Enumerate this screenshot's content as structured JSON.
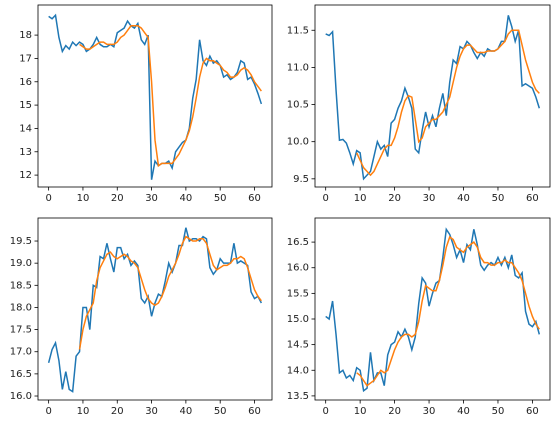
{
  "chart_data": [
    {
      "type": "line",
      "x": [
        0,
        1,
        2,
        3,
        4,
        5,
        6,
        7,
        8,
        9,
        10,
        11,
        12,
        13,
        14,
        15,
        16,
        17,
        18,
        19,
        20,
        21,
        22,
        23,
        24,
        25,
        26,
        27,
        28,
        29,
        30,
        31,
        32,
        33,
        34,
        35,
        36,
        37,
        38,
        39,
        40,
        41,
        42,
        43,
        44,
        45,
        46,
        47,
        48,
        49,
        50,
        51,
        52,
        53,
        54,
        55,
        56,
        57,
        58,
        59,
        60,
        61,
        62
      ],
      "series": [
        {
          "color": "#1f77b4",
          "values": [
            18.8,
            18.7,
            18.85,
            17.9,
            17.3,
            17.55,
            17.4,
            17.7,
            17.55,
            17.7,
            17.6,
            17.3,
            17.4,
            17.6,
            17.9,
            17.6,
            17.5,
            17.5,
            17.6,
            17.5,
            18.1,
            18.2,
            18.3,
            18.6,
            18.4,
            18.3,
            18.5,
            17.8,
            17.6,
            18.0,
            11.8,
            12.6,
            12.4,
            12.5,
            12.5,
            12.6,
            12.3,
            13.0,
            13.2,
            13.4,
            13.5,
            14.0,
            15.3,
            16.1,
            17.8,
            16.9,
            16.7,
            17.1,
            16.8,
            16.9,
            16.7,
            16.2,
            16.3,
            16.1,
            16.2,
            16.4,
            16.9,
            16.8,
            16.1,
            16.2,
            15.9,
            15.5,
            15.05
          ]
        },
        {
          "color": "#ff7f0e",
          "values": [
            null,
            null,
            null,
            null,
            null,
            null,
            null,
            null,
            null,
            17.6,
            17.5,
            17.4,
            17.4,
            17.5,
            17.6,
            17.7,
            17.7,
            17.6,
            17.6,
            17.6,
            17.7,
            17.9,
            18.0,
            18.2,
            18.4,
            18.4,
            18.4,
            18.3,
            18.1,
            17.9,
            16.0,
            13.5,
            12.4,
            12.5,
            12.5,
            12.5,
            12.5,
            12.7,
            12.9,
            13.2,
            13.5,
            13.9,
            14.5,
            15.3,
            16.2,
            16.8,
            17.0,
            16.9,
            16.9,
            16.8,
            16.7,
            16.5,
            16.4,
            16.2,
            16.2,
            16.3,
            16.5,
            16.6,
            16.5,
            16.3,
            16.0,
            15.8,
            15.6
          ]
        }
      ],
      "xlim": [
        -3.1,
        65.1
      ],
      "xticks": [
        0,
        10,
        20,
        30,
        40,
        50,
        60
      ],
      "ylim": [
        11.49,
        19.29
      ],
      "yticks": [
        12,
        13,
        14,
        15,
        16,
        17,
        18
      ]
    },
    {
      "type": "line",
      "x": [
        0,
        1,
        2,
        3,
        4,
        5,
        6,
        7,
        8,
        9,
        10,
        11,
        12,
        13,
        14,
        15,
        16,
        17,
        18,
        19,
        20,
        21,
        22,
        23,
        24,
        25,
        26,
        27,
        28,
        29,
        30,
        31,
        32,
        33,
        34,
        35,
        36,
        37,
        38,
        39,
        40,
        41,
        42,
        43,
        44,
        45,
        46,
        47,
        48,
        49,
        50,
        51,
        52,
        53,
        54,
        55,
        56,
        57,
        58,
        59,
        60,
        61,
        62
      ],
      "series": [
        {
          "color": "#1f77b4",
          "values": [
            11.45,
            11.43,
            11.48,
            10.7,
            10.02,
            10.03,
            9.98,
            9.85,
            9.7,
            9.88,
            9.85,
            9.5,
            9.55,
            9.6,
            9.8,
            10.0,
            9.9,
            9.95,
            9.8,
            10.25,
            10.3,
            10.45,
            10.55,
            10.72,
            10.6,
            10.45,
            9.9,
            9.85,
            10.15,
            10.4,
            10.2,
            10.35,
            10.2,
            10.45,
            10.65,
            10.35,
            10.8,
            11.1,
            11.05,
            11.28,
            11.25,
            11.35,
            11.3,
            11.2,
            11.12,
            11.2,
            11.15,
            11.25,
            11.22,
            11.22,
            11.25,
            11.35,
            11.35,
            11.7,
            11.55,
            11.35,
            11.5,
            10.75,
            10.78,
            10.75,
            10.72,
            10.6,
            10.45
          ]
        },
        {
          "color": "#ff7f0e",
          "values": [
            null,
            null,
            null,
            null,
            null,
            null,
            null,
            null,
            null,
            9.85,
            9.75,
            9.65,
            9.6,
            9.55,
            9.6,
            9.7,
            9.8,
            9.9,
            9.95,
            9.95,
            10.05,
            10.2,
            10.4,
            10.55,
            10.62,
            10.6,
            10.3,
            10.0,
            10.05,
            10.2,
            10.25,
            10.3,
            10.3,
            10.35,
            10.4,
            10.5,
            10.6,
            10.8,
            11.0,
            11.15,
            11.25,
            11.3,
            11.3,
            11.25,
            11.2,
            11.2,
            11.2,
            11.22,
            11.22,
            11.22,
            11.25,
            11.3,
            11.35,
            11.45,
            11.5,
            11.5,
            11.5,
            11.3,
            11.1,
            10.95,
            10.8,
            10.7,
            10.65
          ]
        }
      ],
      "xlim": [
        -3.1,
        65.1
      ],
      "xticks": [
        0,
        10,
        20,
        30,
        40,
        50,
        60
      ],
      "ylim": [
        9.39,
        11.84
      ],
      "yticks": [
        9.5,
        {
          "value": 10,
          "label": "10.0"
        },
        10.5,
        {
          "value": 11,
          "label": "11.0"
        },
        11.5
      ]
    },
    {
      "type": "line",
      "x": [
        0,
        1,
        2,
        3,
        4,
        5,
        6,
        7,
        8,
        9,
        10,
        11,
        12,
        13,
        14,
        15,
        16,
        17,
        18,
        19,
        20,
        21,
        22,
        23,
        24,
        25,
        26,
        27,
        28,
        29,
        30,
        31,
        32,
        33,
        34,
        35,
        36,
        37,
        38,
        39,
        40,
        41,
        42,
        43,
        44,
        45,
        46,
        47,
        48,
        49,
        50,
        51,
        52,
        53,
        54,
        55,
        56,
        57,
        58,
        59,
        60,
        61,
        62
      ],
      "series": [
        {
          "color": "#1f77b4",
          "values": [
            16.75,
            17.05,
            17.2,
            16.8,
            16.15,
            16.55,
            16.15,
            16.1,
            16.9,
            17.0,
            18.0,
            18.0,
            17.5,
            18.5,
            18.45,
            19.15,
            19.1,
            19.45,
            19.1,
            18.8,
            19.35,
            19.35,
            19.1,
            19.2,
            18.95,
            19.05,
            18.95,
            18.2,
            18.1,
            18.25,
            17.8,
            18.1,
            18.3,
            18.25,
            18.6,
            19.0,
            18.8,
            19.0,
            19.4,
            19.4,
            19.8,
            19.5,
            19.55,
            19.55,
            19.5,
            19.6,
            19.55,
            18.9,
            18.75,
            18.85,
            19.1,
            19.0,
            19.0,
            19.0,
            19.45,
            19.0,
            19.05,
            19.0,
            18.95,
            18.35,
            18.2,
            18.25,
            18.1
          ]
        },
        {
          "color": "#ff7f0e",
          "values": [
            null,
            null,
            null,
            null,
            null,
            null,
            null,
            null,
            null,
            17.05,
            17.5,
            17.8,
            17.95,
            18.1,
            18.6,
            18.9,
            19.05,
            19.2,
            19.25,
            19.15,
            19.1,
            19.15,
            19.2,
            19.15,
            19.05,
            19.0,
            18.9,
            18.65,
            18.4,
            18.2,
            18.1,
            18.05,
            18.1,
            18.25,
            18.45,
            18.7,
            18.85,
            19.0,
            19.2,
            19.45,
            19.6,
            19.55,
            19.5,
            19.5,
            19.55,
            19.55,
            19.45,
            19.2,
            18.95,
            18.85,
            18.9,
            18.95,
            18.95,
            19.0,
            19.1,
            19.1,
            19.15,
            19.1,
            18.9,
            18.65,
            18.4,
            18.25,
            18.15
          ]
        }
      ],
      "xlim": [
        -3.1,
        65.1
      ],
      "xticks": [
        0,
        10,
        20,
        30,
        40,
        50,
        60
      ],
      "ylim": [
        15.91,
        20.02
      ],
      "yticks": [
        {
          "value": 16,
          "label": "16.0"
        },
        16.5,
        {
          "value": 17,
          "label": "17.0"
        },
        17.5,
        {
          "value": 18,
          "label": "18.0"
        },
        18.5,
        {
          "value": 19,
          "label": "19.0"
        },
        19.5
      ]
    },
    {
      "type": "line",
      "x": [
        0,
        1,
        2,
        3,
        4,
        5,
        6,
        7,
        8,
        9,
        10,
        11,
        12,
        13,
        14,
        15,
        16,
        17,
        18,
        19,
        20,
        21,
        22,
        23,
        24,
        25,
        26,
        27,
        28,
        29,
        30,
        31,
        32,
        33,
        34,
        35,
        36,
        37,
        38,
        39,
        40,
        41,
        42,
        43,
        44,
        45,
        46,
        47,
        48,
        49,
        50,
        51,
        52,
        53,
        54,
        55,
        56,
        57,
        58,
        59,
        60,
        61,
        62
      ],
      "series": [
        {
          "color": "#1f77b4",
          "values": [
            15.05,
            15.0,
            15.35,
            14.7,
            13.95,
            14.0,
            13.85,
            13.9,
            13.8,
            14.05,
            14.0,
            13.6,
            13.65,
            14.35,
            13.8,
            13.95,
            13.95,
            13.7,
            14.3,
            14.5,
            14.55,
            14.75,
            14.65,
            14.8,
            14.65,
            14.4,
            14.65,
            15.3,
            15.8,
            15.7,
            15.25,
            15.5,
            15.7,
            15.75,
            16.2,
            16.75,
            16.65,
            16.45,
            16.2,
            16.35,
            16.1,
            16.45,
            16.35,
            16.75,
            16.45,
            16.05,
            15.95,
            16.05,
            16.1,
            16.05,
            16.2,
            16.05,
            16.2,
            16.0,
            16.25,
            15.85,
            15.8,
            15.9,
            15.15,
            14.9,
            14.85,
            14.95,
            14.7
          ]
        },
        {
          "color": "#ff7f0e",
          "values": [
            null,
            null,
            null,
            null,
            null,
            null,
            null,
            null,
            null,
            13.95,
            13.9,
            13.8,
            13.7,
            13.75,
            13.8,
            13.9,
            14.0,
            13.95,
            14.0,
            14.2,
            14.4,
            14.55,
            14.65,
            14.7,
            14.7,
            14.65,
            14.7,
            14.95,
            15.35,
            15.65,
            15.6,
            15.55,
            15.55,
            15.75,
            16.05,
            16.4,
            16.6,
            16.55,
            16.4,
            16.35,
            16.3,
            16.4,
            16.45,
            16.5,
            16.4,
            16.2,
            16.1,
            16.1,
            16.05,
            16.05,
            16.1,
            16.1,
            16.15,
            16.1,
            16.1,
            16.0,
            15.9,
            15.75,
            15.5,
            15.25,
            15.05,
            14.9,
            14.8
          ]
        }
      ],
      "xlim": [
        -3.1,
        65.1
      ],
      "xticks": [
        0,
        10,
        20,
        30,
        40,
        50,
        60
      ],
      "ylim": [
        13.42,
        16.97
      ],
      "yticks": [
        13.5,
        {
          "value": 14,
          "label": "14.0"
        },
        14.5,
        {
          "value": 15,
          "label": "15.0"
        },
        15.5,
        {
          "value": 16,
          "label": "16.0"
        },
        16.5
      ]
    }
  ]
}
